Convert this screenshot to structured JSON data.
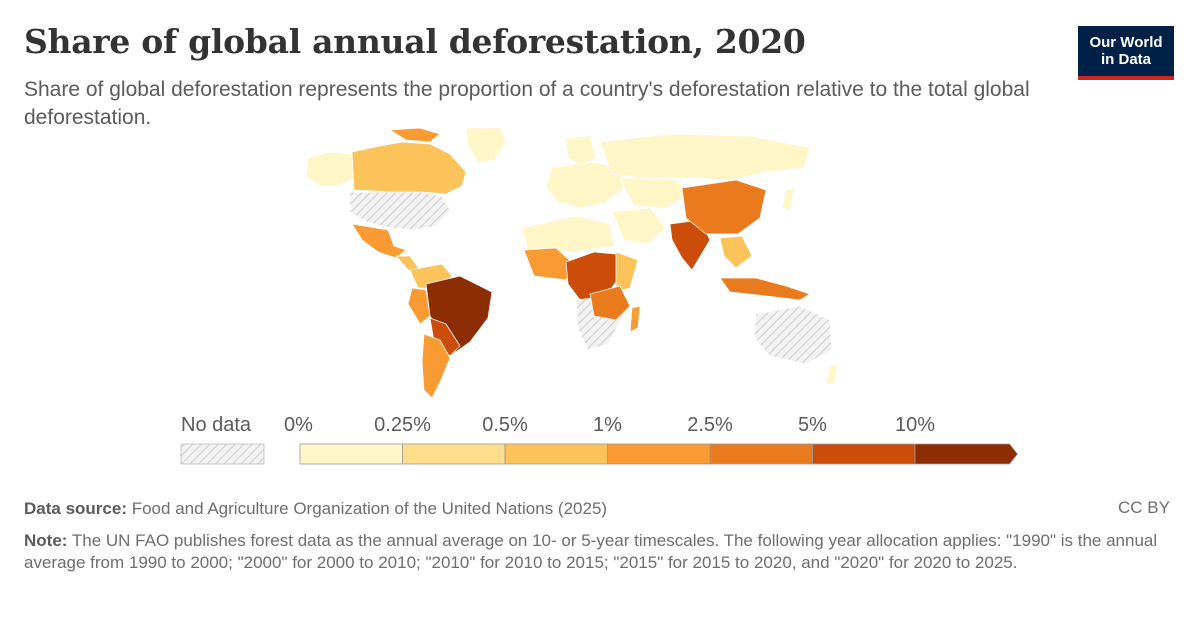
{
  "header": {
    "title": "Share of global annual deforestation, 2020",
    "subtitle": "Share of global deforestation represents the proportion of a country's deforestation relative to the total global deforestation."
  },
  "logo": {
    "line1": "Our World",
    "line2": "in Data"
  },
  "legend": {
    "no_data_label": "No data",
    "bins": [
      {
        "label": "0%",
        "color": "#fff6c8"
      },
      {
        "label": "0.25%",
        "color": "#fede8c"
      },
      {
        "label": "0.5%",
        "color": "#fcc35a"
      },
      {
        "label": "1%",
        "color": "#f99a33"
      },
      {
        "label": "2.5%",
        "color": "#ea7a1e"
      },
      {
        "label": "5%",
        "color": "#cc4d0a"
      },
      {
        "label": "10%",
        "color": "#8c2d04"
      }
    ]
  },
  "footer": {
    "source_label": "Data source:",
    "source_text": "Food and Agriculture Organization of the United Nations (2025)",
    "license": "CC BY",
    "note_label": "Note:",
    "note_text": "The UN FAO publishes forest data as the annual average on 10- or 5-year timescales. The following year allocation applies: \"1990\" is the annual average from 1990 to 2000; \"2000\" for 2000 to 2010; \"2010\" for 2010 to 2015; \"2015\" for 2015 to 2020, and \"2020\" for 2020 to 2025."
  },
  "colors": {
    "no_data": "#e6e6e6",
    "hatch": "#c8c8c8",
    "border": "#ffffff",
    "logo_bg": "#002147",
    "logo_accent": "#ce261e"
  }
}
